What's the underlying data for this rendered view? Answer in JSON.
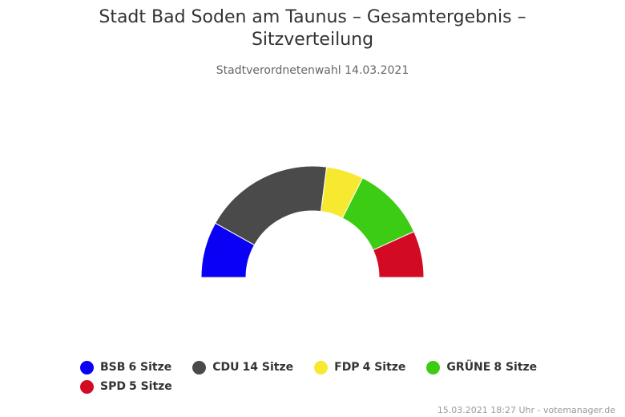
{
  "chart_data": {
    "type": "pie",
    "subtype": "parliament-semicircle",
    "title": "Stadt Bad Soden am Taunus – Gesamtergebnis – Sitzverteilung",
    "subtitle": "Stadtverordnetenwahl 14.03.2021",
    "seat_unit": "Sitze",
    "legend_position": "bottom",
    "series": [
      {
        "name": "BSB",
        "value": 6,
        "color": "#0a00f5"
      },
      {
        "name": "CDU",
        "value": 14,
        "color": "#4a4a4a"
      },
      {
        "name": "FDP",
        "value": 4,
        "color": "#f7e830"
      },
      {
        "name": "GRÜNE",
        "value": 8,
        "color": "#3ccc13"
      },
      {
        "name": "SPD",
        "value": 5,
        "color": "#d30a24"
      }
    ]
  },
  "credits": "15.03.2021 18:27 Uhr - votemanager.de"
}
